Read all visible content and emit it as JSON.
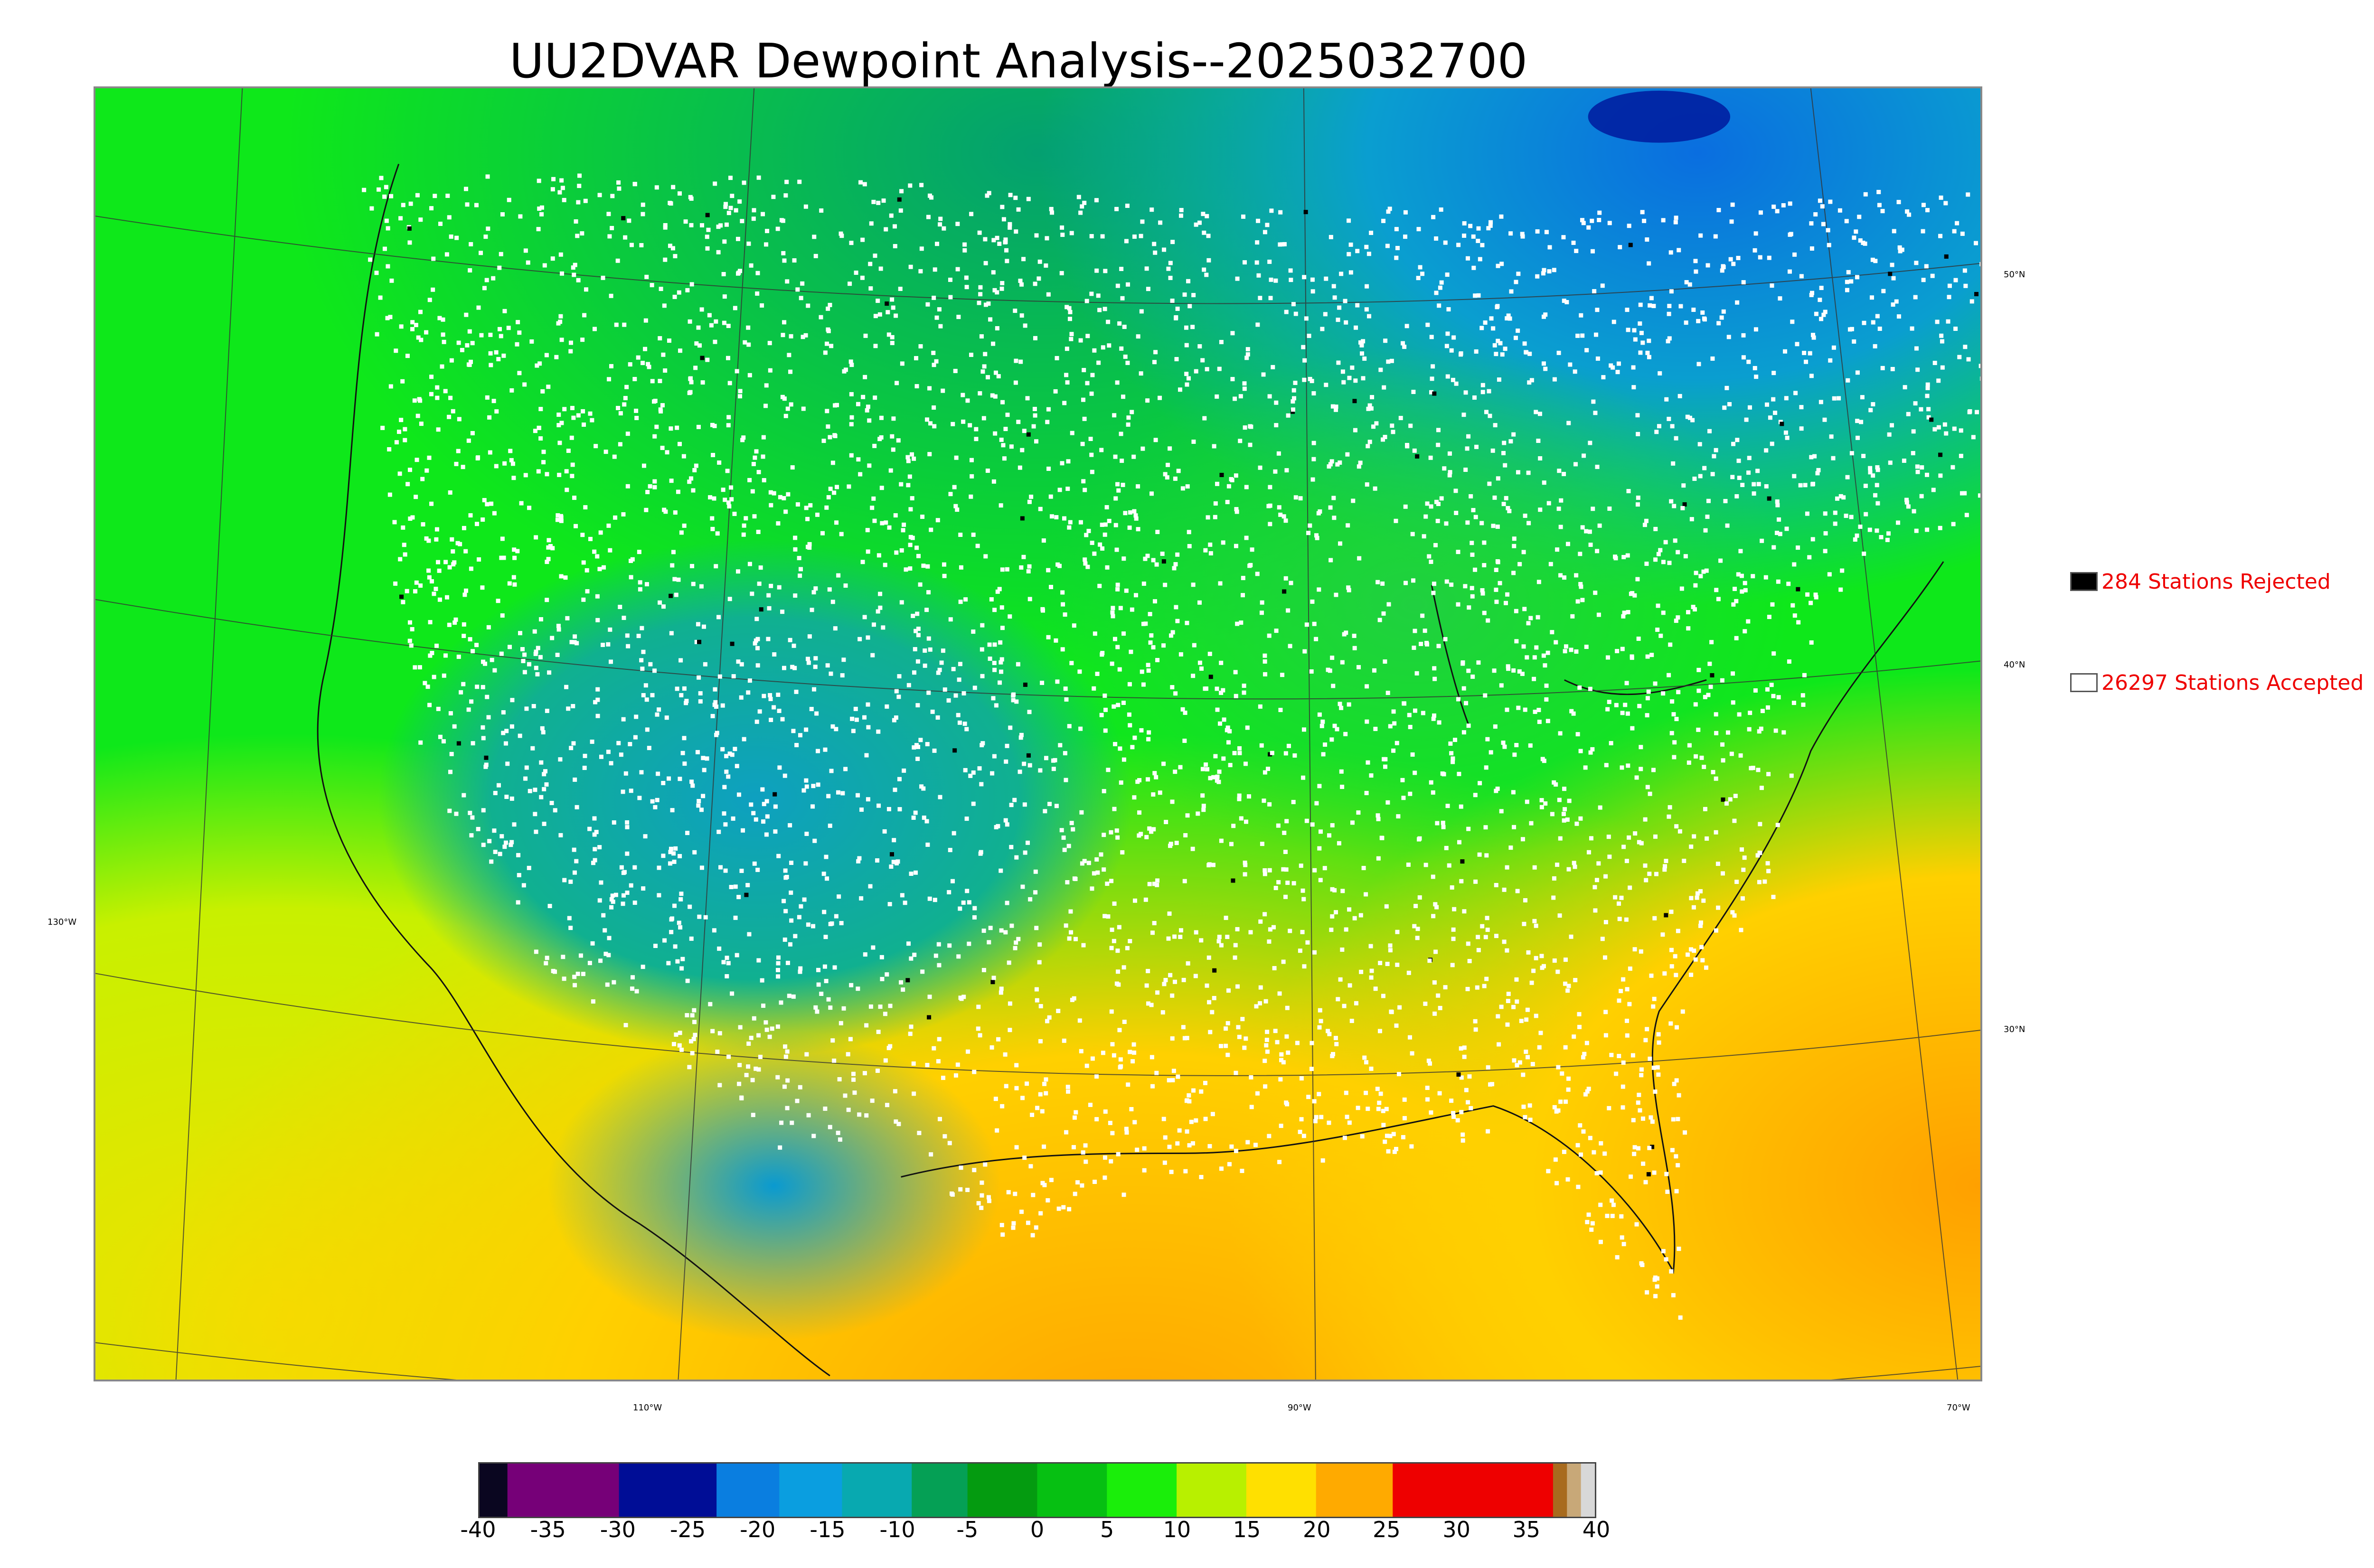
{
  "title": "UU2DVAR Dewpoint Analysis--2025032700",
  "map": {
    "lat_labels": [
      "50°N",
      "40°N",
      "30°N"
    ],
    "lon_labels": [
      "130°W",
      "110°W",
      "90°W",
      "70°W"
    ]
  },
  "legend": {
    "rejected": {
      "label": "284 Stations Rejected",
      "swatch_color": "#000000"
    },
    "accepted": {
      "label": "26297 Stations Accepted",
      "swatch_color": "#ffffff"
    },
    "text_color": "#ee0000"
  },
  "colorbar": {
    "min": -40,
    "max": 40,
    "tick_labels": [
      "-40",
      "-35",
      "-30",
      "-25",
      "-20",
      "-15",
      "-10",
      "-5",
      "0",
      "5",
      "10",
      "15",
      "20",
      "25",
      "30",
      "35",
      "40"
    ],
    "segments": [
      {
        "from": -40,
        "to": -38,
        "color": "#0a0620"
      },
      {
        "from": -38,
        "to": -30,
        "color": "#760078"
      },
      {
        "from": -30,
        "to": -23,
        "color": "#000d96"
      },
      {
        "from": -23,
        "to": -18.5,
        "color": "#0a7ee0"
      },
      {
        "from": -18.5,
        "to": -14,
        "color": "#0a9ee0"
      },
      {
        "from": -14,
        "to": -9,
        "color": "#08a9b0"
      },
      {
        "from": -9,
        "to": -5,
        "color": "#05a055"
      },
      {
        "from": -5,
        "to": 0,
        "color": "#049b10"
      },
      {
        "from": 0,
        "to": 5,
        "color": "#06c012"
      },
      {
        "from": 5,
        "to": 10,
        "color": "#1aee0a"
      },
      {
        "from": 10,
        "to": 15,
        "color": "#b8f000"
      },
      {
        "from": 15,
        "to": 20,
        "color": "#ffe000"
      },
      {
        "from": 20,
        "to": 25.5,
        "color": "#ffaa00"
      },
      {
        "from": 25.5,
        "to": 37,
        "color": "#ee0000"
      },
      {
        "from": 37,
        "to": 38,
        "color": "#a86b1e"
      },
      {
        "from": 38,
        "to": 39,
        "color": "#c8a878"
      },
      {
        "from": 39,
        "to": 40,
        "color": "#d8d8d8"
      }
    ]
  }
}
